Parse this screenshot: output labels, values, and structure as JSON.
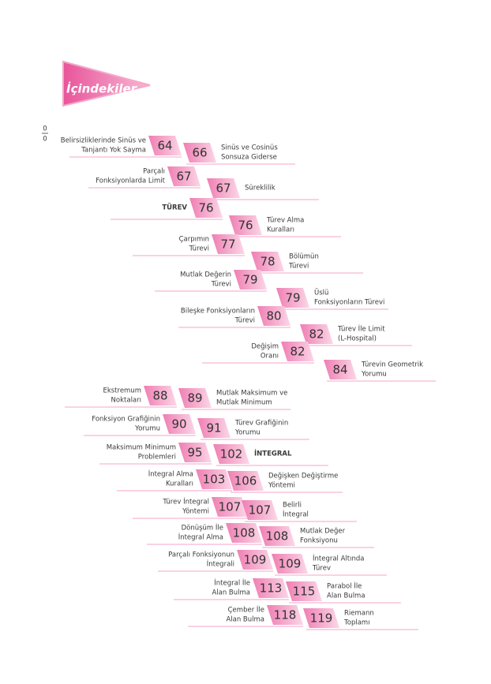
{
  "header": {
    "title": "İçindekiler"
  },
  "entries": [
    {
      "fraction": [
        "0",
        "0"
      ],
      "lines": [
        "Belirsizliklerinde Sinüs ve",
        "Tanjantı Yok Sayma"
      ],
      "page": 64
    },
    {
      "lines": [
        "Sinüs ve Cosinüs",
        "Sonsuza Giderse"
      ],
      "page": 66
    },
    {
      "lines": [
        "Parçalı",
        "Fonksiyonlarda Limit"
      ],
      "page": 67
    },
    {
      "lines": [
        "Süreklilik"
      ],
      "page": 67
    },
    {
      "lines": [
        "TÜREV"
      ],
      "page": 76
    },
    {
      "lines": [
        "Türev Alma",
        "Kuralları"
      ],
      "page": 76
    },
    {
      "lines": [
        "Çarpımın",
        "Türevi"
      ],
      "page": 77
    },
    {
      "lines": [
        "Bölümün",
        "Türevi"
      ],
      "page": 78
    },
    {
      "lines": [
        "Mutlak Değerin",
        "Türevi"
      ],
      "page": 79
    },
    {
      "lines": [
        "Üslü",
        "Fonksiyonların Türevi"
      ],
      "page": 79
    },
    {
      "lines": [
        "Bileşke Fonksiyonların",
        "Türevi"
      ],
      "page": 80
    },
    {
      "lines": [
        "Türev İle Limit",
        "(L-Hospital)"
      ],
      "page": 82
    },
    {
      "lines": [
        "Değişim",
        "Oranı"
      ],
      "page": 82
    },
    {
      "lines": [
        "Türevin Geometrik",
        "Yorumu"
      ],
      "page": 84
    },
    {
      "lines": [
        "Ekstremum",
        "Noktaları"
      ],
      "page": 88
    },
    {
      "lines": [
        "Mutlak Maksimum ve",
        "Mutlak Minimum"
      ],
      "page": 89
    },
    {
      "lines": [
        "Fonksiyon Grafiğinin",
        "Yorumu"
      ],
      "page": 90
    },
    {
      "lines": [
        "Türev Grafiğinin",
        "Yorumu"
      ],
      "page": 91
    },
    {
      "lines": [
        "Maksimum Minimum",
        "Problemleri"
      ],
      "page": 95
    },
    {
      "lines": [
        "İNTEGRAL"
      ],
      "page": 102
    },
    {
      "lines": [
        "İntegral Alma",
        "Kuralları"
      ],
      "page": 103
    },
    {
      "lines": [
        "Değişken Değiştirme",
        "Yöntemi"
      ],
      "page": 106
    },
    {
      "lines": [
        "Türev İntegral",
        "Yöntemi"
      ],
      "page": 107
    },
    {
      "lines": [
        "Belirli",
        "İntegral"
      ],
      "page": 107
    },
    {
      "lines": [
        "Dönüşüm İle",
        "İntegral Alma"
      ],
      "page": 108
    },
    {
      "lines": [
        "Mutlak Değer",
        "Fonksiyonu"
      ],
      "page": 108
    },
    {
      "lines": [
        "Parçalı Fonksiyonun",
        "İntegrali"
      ],
      "page": 109
    },
    {
      "lines": [
        "İntegral Altında",
        "Türev"
      ],
      "page": 109
    },
    {
      "lines": [
        "İntegral İle",
        "Alan Bulma"
      ],
      "page": 113
    },
    {
      "lines": [
        "Parabol İle",
        "Alan Bulma"
      ],
      "page": 115
    },
    {
      "lines": [
        "Çember İle",
        "Alan Bulma"
      ],
      "page": 118
    },
    {
      "lines": [
        "Riemann",
        "Toplamı"
      ],
      "page": 119
    }
  ]
}
